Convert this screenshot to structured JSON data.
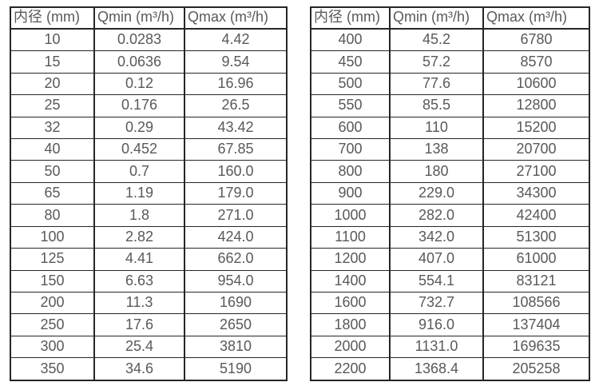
{
  "colors": {
    "background": "#ffffff",
    "text": "#595959",
    "border": "#262626"
  },
  "tables": [
    {
      "name": "flow-table-small-diameters",
      "headers": [
        "内径 (mm)",
        "Qmin (m³/h)",
        "Qmax (m³/h)"
      ],
      "rows": [
        [
          "10",
          "0.0283",
          "4.42"
        ],
        [
          "15",
          "0.0636",
          "9.54"
        ],
        [
          "20",
          "0.12",
          "16.96"
        ],
        [
          "25",
          "0.176",
          "26.5"
        ],
        [
          "32",
          "0.29",
          "43.42"
        ],
        [
          "40",
          "0.452",
          "67.85"
        ],
        [
          "50",
          "0.7",
          "160.0"
        ],
        [
          "65",
          "1.19",
          "179.0"
        ],
        [
          "80",
          "1.8",
          "271.0"
        ],
        [
          "100",
          "2.82",
          "424.0"
        ],
        [
          "125",
          "4.41",
          "662.0"
        ],
        [
          "150",
          "6.63",
          "954.0"
        ],
        [
          "200",
          "11.3",
          "1690"
        ],
        [
          "250",
          "17.6",
          "2650"
        ],
        [
          "300",
          "25.4",
          "3810"
        ],
        [
          "350",
          "34.6",
          "5190"
        ]
      ]
    },
    {
      "name": "flow-table-large-diameters",
      "headers": [
        "内径 (mm)",
        "Qmin (m³/h)",
        "Qmax (m³/h)"
      ],
      "rows": [
        [
          "400",
          "45.2",
          "6780"
        ],
        [
          "450",
          "57.2",
          "8570"
        ],
        [
          "500",
          "77.6",
          "10600"
        ],
        [
          "550",
          "85.5",
          "12800"
        ],
        [
          "600",
          "110",
          "15200"
        ],
        [
          "700",
          "138",
          "20700"
        ],
        [
          "800",
          "180",
          "27100"
        ],
        [
          "900",
          "229.0",
          "34300"
        ],
        [
          "1000",
          "282.0",
          "42400"
        ],
        [
          "1100",
          "342.0",
          "51300"
        ],
        [
          "1200",
          "407.0",
          "61000"
        ],
        [
          "1400",
          "554.1",
          "83121"
        ],
        [
          "1600",
          "732.7",
          "108566"
        ],
        [
          "1800",
          "916.0",
          "137404"
        ],
        [
          "2000",
          "1131.0",
          "169635"
        ],
        [
          "2200",
          "1368.4",
          "205258"
        ]
      ]
    }
  ]
}
